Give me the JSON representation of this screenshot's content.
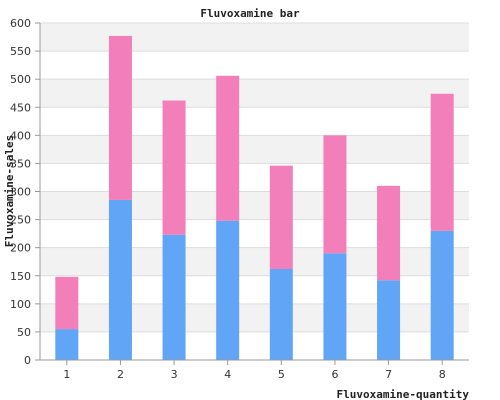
{
  "chart_data": {
    "type": "bar",
    "stacked": true,
    "title": "Fluvoxamine bar",
    "xlabel": "Fluvoxamine-quantity",
    "ylabel": "Fluvoxamine-sales",
    "categories": [
      "1",
      "2",
      "3",
      "4",
      "5",
      "6",
      "7",
      "8"
    ],
    "series": [
      {
        "values": [
          55,
          285,
          223,
          248,
          162,
          190,
          142,
          230
        ],
        "color": "#60a5f6"
      },
      {
        "values": [
          93,
          292,
          239,
          258,
          184,
          210,
          168,
          244
        ],
        "color": "#f27fba"
      }
    ],
    "ylim": [
      0,
      600
    ],
    "yticks": [
      0,
      50,
      100,
      150,
      200,
      250,
      300,
      350,
      400,
      450,
      500,
      550,
      600
    ],
    "grid": true,
    "grid_style": "alternating horizontal bands",
    "legend": "none"
  }
}
